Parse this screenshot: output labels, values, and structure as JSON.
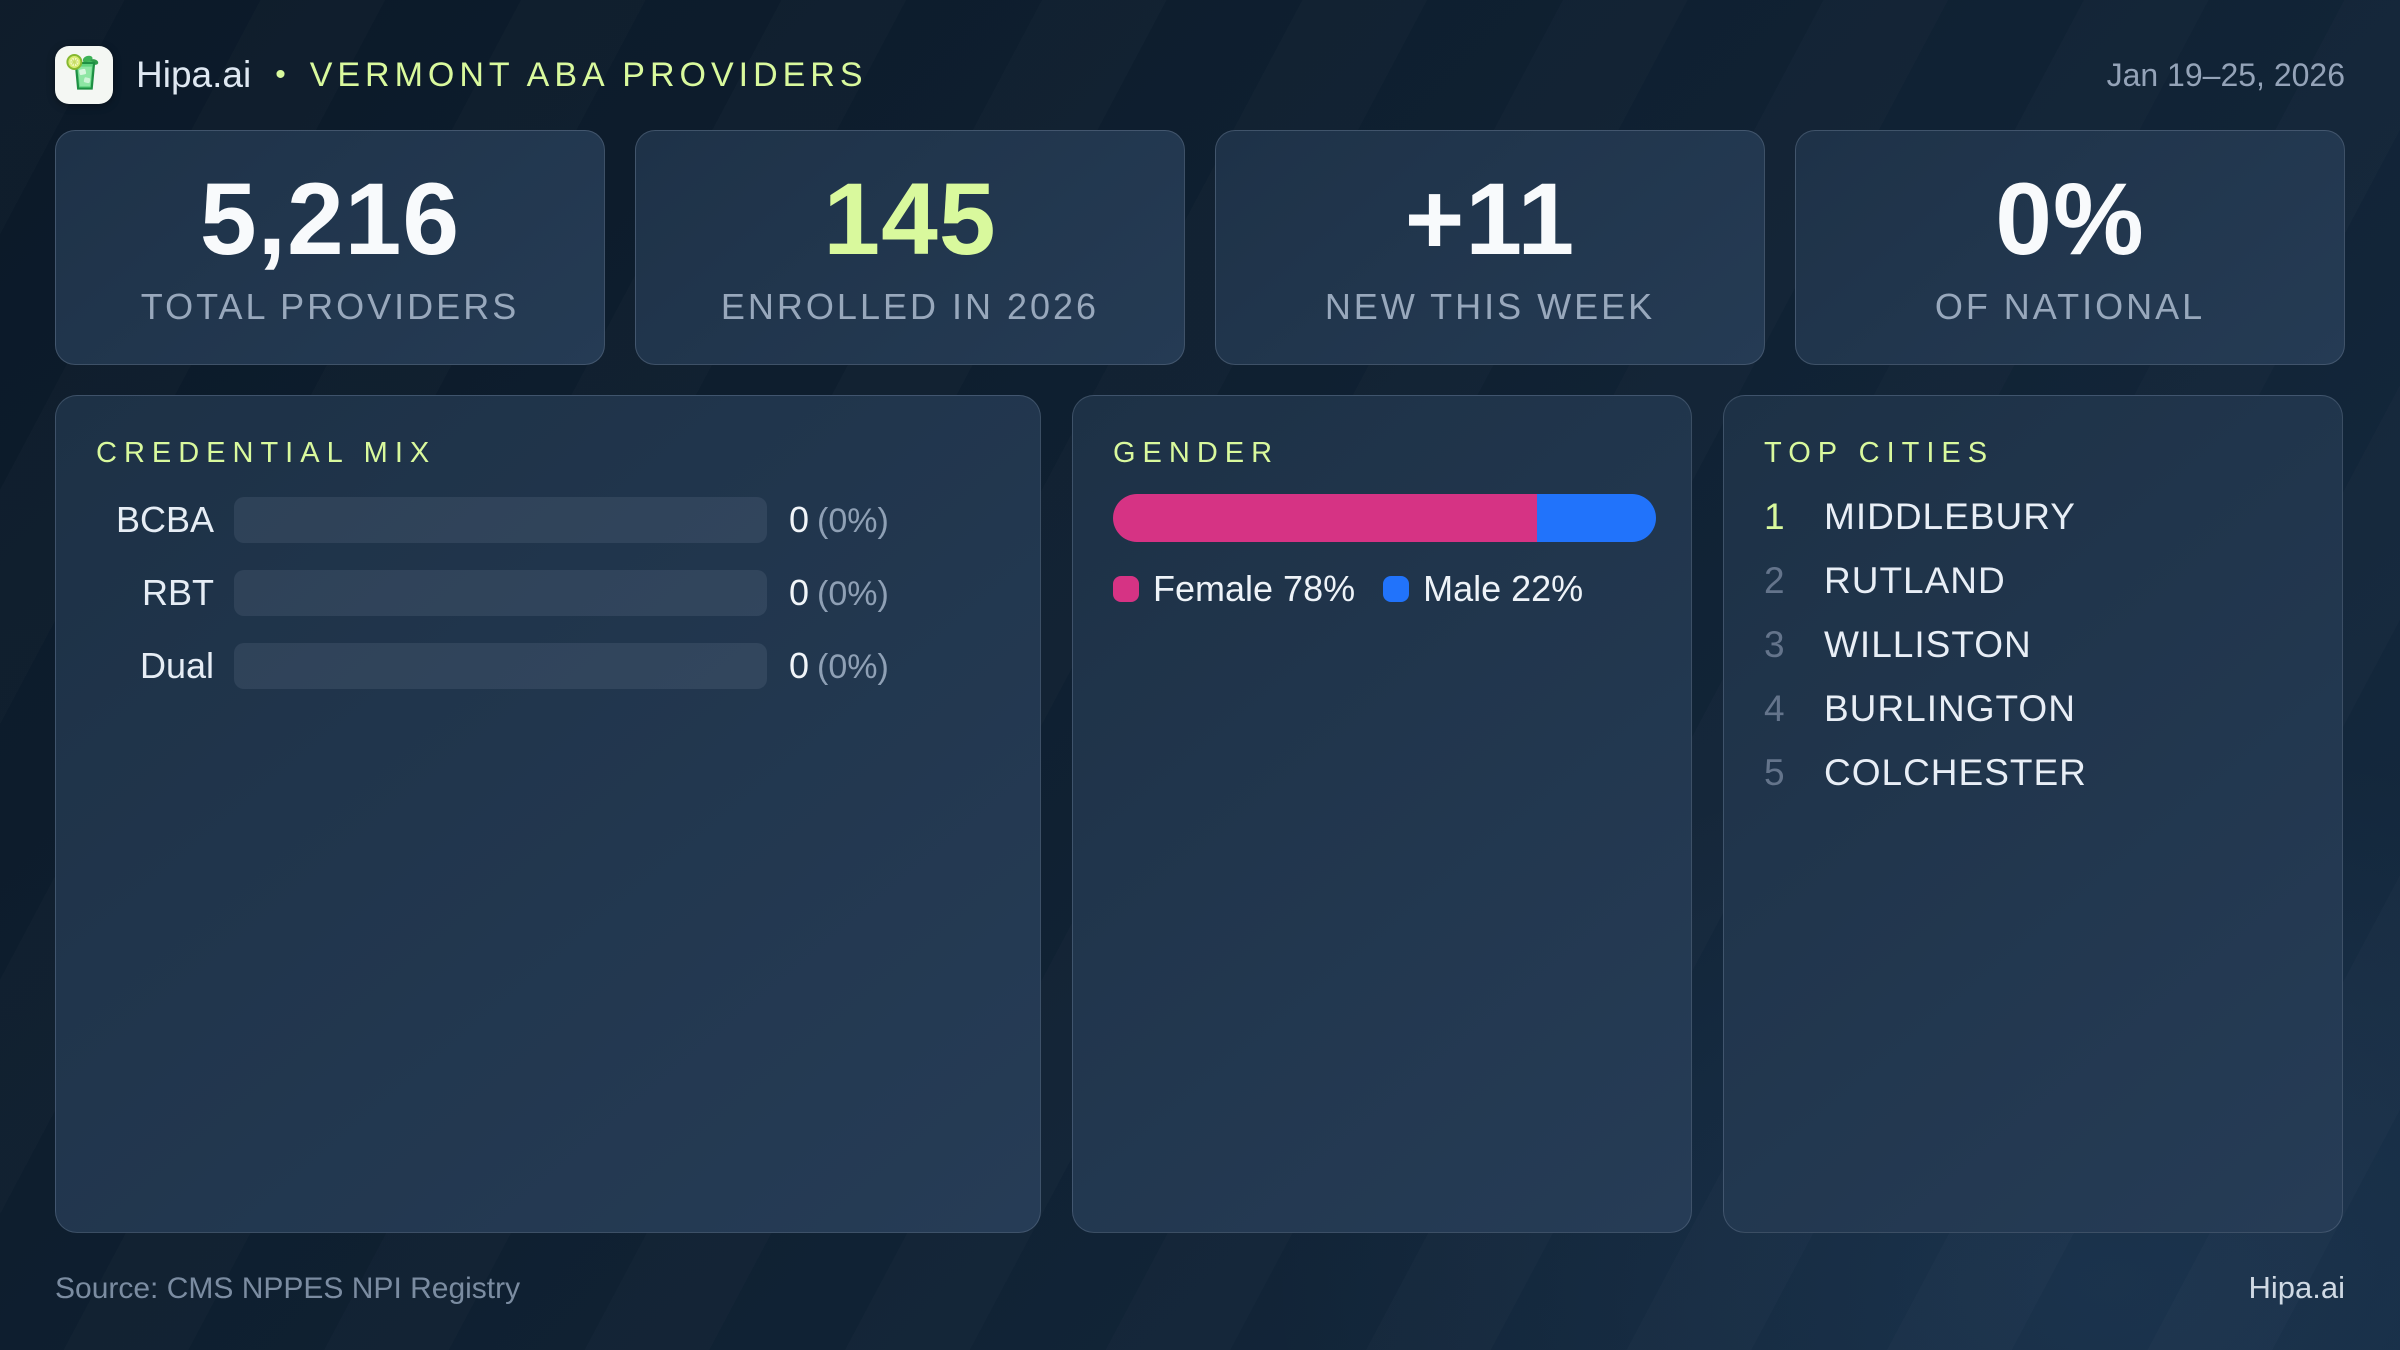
{
  "colors": {
    "accent_green": "#d9f99d",
    "female_pink": "#d63384",
    "male_blue": "#2173fb",
    "bar_track": "rgba(148,163,184,0.14)"
  },
  "header": {
    "logo_icon": "mojito-glass-icon",
    "brand": "Hipa.ai",
    "separator": "•",
    "title": "VERMONT ABA PROVIDERS",
    "date_range": "Jan 19–25, 2026"
  },
  "stats": [
    {
      "value": "5,216",
      "label": "TOTAL PROVIDERS",
      "accent": false
    },
    {
      "value": "145",
      "label": "ENROLLED IN 2026",
      "accent": true
    },
    {
      "value": "+11",
      "label": "NEW THIS WEEK",
      "accent": false
    },
    {
      "value": "0%",
      "label": "OF NATIONAL",
      "accent": false
    }
  ],
  "credential_mix": {
    "title": "CREDENTIAL MIX",
    "rows": [
      {
        "label": "BCBA",
        "value": "0",
        "pct_label": "(0%)",
        "fill_pct": 0
      },
      {
        "label": "RBT",
        "value": "0",
        "pct_label": "(0%)",
        "fill_pct": 0
      },
      {
        "label": "Dual",
        "value": "0",
        "pct_label": "(0%)",
        "fill_pct": 0
      }
    ]
  },
  "gender": {
    "title": "GENDER",
    "female_pct": 78,
    "male_pct": 22,
    "legend": [
      {
        "label": "Female 78%"
      },
      {
        "label": "Male 22%"
      }
    ]
  },
  "top_cities": {
    "title": "TOP CITIES",
    "items": [
      {
        "rank": "1",
        "city": "MIDDLEBURY"
      },
      {
        "rank": "2",
        "city": "RUTLAND"
      },
      {
        "rank": "3",
        "city": "WILLISTON"
      },
      {
        "rank": "4",
        "city": "BURLINGTON"
      },
      {
        "rank": "5",
        "city": "COLCHESTER"
      }
    ]
  },
  "footer": {
    "source": "Source: CMS NPPES NPI Registry",
    "brand": "Hipa.ai"
  },
  "chart_data": [
    {
      "type": "bar",
      "title": "CREDENTIAL MIX",
      "categories": [
        "BCBA",
        "RBT",
        "Dual"
      ],
      "values": [
        0,
        0,
        0
      ],
      "value_labels": [
        "0 (0%)",
        "0 (0%)",
        "0 (0%)"
      ]
    },
    {
      "type": "bar",
      "title": "GENDER",
      "categories": [
        "Female",
        "Male"
      ],
      "values": [
        78,
        22
      ],
      "unit": "%",
      "legend_position": "bottom"
    },
    {
      "type": "table",
      "title": "TOP CITIES",
      "categories": [
        "MIDDLEBURY",
        "RUTLAND",
        "WILLISTON",
        "BURLINGTON",
        "COLCHESTER"
      ],
      "values": [
        1,
        2,
        3,
        4,
        5
      ]
    }
  ]
}
